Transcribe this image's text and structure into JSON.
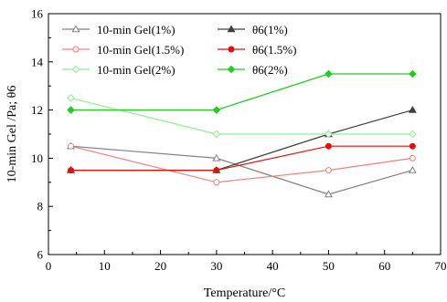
{
  "chart_data": {
    "type": "line",
    "xlabel": "Temperature/°C",
    "ylabel": "10-min Gel /Pa; θ6",
    "xlim": [
      0,
      70
    ],
    "ylim": [
      6,
      16
    ],
    "x_ticks": [
      0,
      10,
      20,
      30,
      40,
      50,
      60,
      70
    ],
    "y_ticks": [
      6,
      8,
      10,
      12,
      14,
      16
    ],
    "grid": false,
    "legend_position": "top",
    "series": [
      {
        "name": "10-min Gel(1%)",
        "color": "#808080",
        "marker": "triangle",
        "filled": false,
        "x": [
          4,
          30,
          50,
          65
        ],
        "y": [
          10.5,
          10,
          8.5,
          9.5
        ]
      },
      {
        "name": "θ6(1%)",
        "color": "#404040",
        "marker": "triangle",
        "filled": true,
        "x": [
          4,
          30,
          50,
          65
        ],
        "y": [
          9.5,
          9.5,
          11,
          12
        ]
      },
      {
        "name": "10-min Gel(1.5%)",
        "color": "#f08080",
        "marker": "circle",
        "filled": false,
        "x": [
          4,
          30,
          50,
          65
        ],
        "y": [
          10.5,
          9,
          9.5,
          10
        ]
      },
      {
        "name": "θ6(1.5%)",
        "color": "#e01010",
        "marker": "circle",
        "filled": true,
        "x": [
          4,
          30,
          50,
          65
        ],
        "y": [
          9.5,
          9.5,
          10.5,
          10.5
        ]
      },
      {
        "name": "10-min Gel(2%)",
        "color": "#90ee90",
        "marker": "diamond",
        "filled": false,
        "x": [
          4,
          30,
          50,
          65
        ],
        "y": [
          12.5,
          11,
          11,
          11
        ]
      },
      {
        "name": "θ6(2%)",
        "color": "#22cc22",
        "marker": "diamond",
        "filled": true,
        "x": [
          4,
          30,
          50,
          65
        ],
        "y": [
          12,
          12,
          13.5,
          13.5
        ]
      }
    ]
  }
}
